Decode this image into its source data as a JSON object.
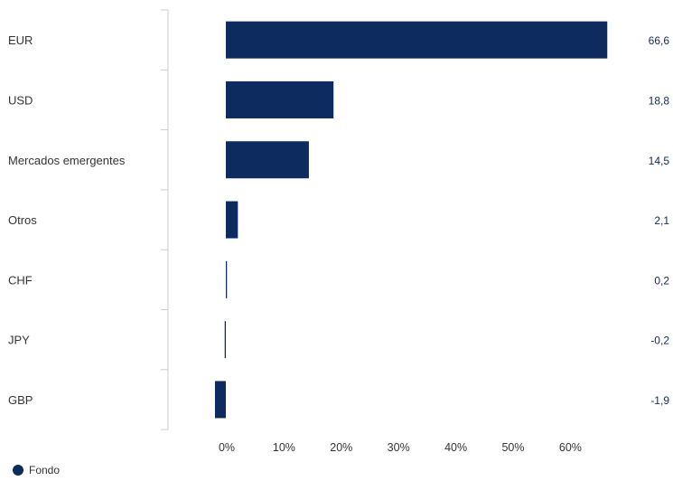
{
  "chart_data": {
    "type": "bar",
    "orientation": "horizontal",
    "categories": [
      "EUR",
      "USD",
      "Mercados emergentes",
      "Otros",
      "CHF",
      "JPY",
      "GBP"
    ],
    "series": [
      {
        "name": "Fondo",
        "values": [
          66.6,
          18.8,
          14.5,
          2.1,
          0.2,
          -0.2,
          -1.9
        ]
      }
    ],
    "value_labels": [
      "66,6",
      "18,8",
      "14,5",
      "2,1",
      "0,2",
      "-0,2",
      "-1,9"
    ],
    "x_ticks": [
      0,
      10,
      20,
      30,
      40,
      50,
      60
    ],
    "x_tick_labels": [
      "0%",
      "10%",
      "20%",
      "30%",
      "40%",
      "50%",
      "60%"
    ],
    "xlim": [
      -10,
      68
    ],
    "grid": false,
    "legend_position": "bottom-left"
  },
  "colors": {
    "bar": "#0d2b5e",
    "axis": "#cccccc"
  },
  "legend": {
    "label": "Fondo"
  }
}
